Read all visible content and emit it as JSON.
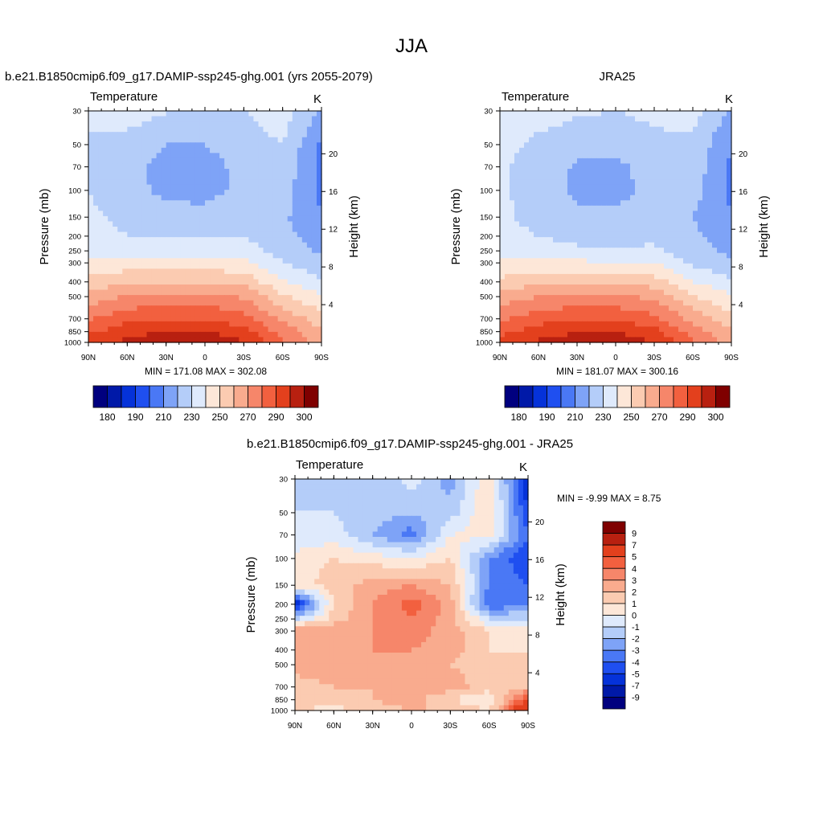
{
  "figure": {
    "title": "JJA"
  },
  "colors": {
    "abs_levels": [
      "#00007f",
      "#0019a8",
      "#0532d9",
      "#1f4ff0",
      "#4a78f5",
      "#7ea3f7",
      "#b4cdf9",
      "#dfeafc",
      "#fde7d8",
      "#fbcbb1",
      "#f9ab8e",
      "#f6866a",
      "#f2603f",
      "#e3401d",
      "#b82010",
      "#7f0000"
    ],
    "diff_levels": [
      "#00007f",
      "#0019a8",
      "#0532d9",
      "#1f4ff0",
      "#4a78f5",
      "#7ea3f7",
      "#b4cdf9",
      "#dfeafc",
      "#fde7d8",
      "#fbcbb1",
      "#f9ab8e",
      "#f6866a",
      "#f2603f",
      "#e3401d",
      "#b82010",
      "#7f0000"
    ]
  },
  "panels": [
    {
      "id": "model",
      "title": "b.e21.B1850cmip6.f09_g17.DAMIP-ssp245-ghg.001 (yrs 2055-2079)",
      "left_label": "Temperature",
      "right_label": "K",
      "y_label": "Pressure (mb)",
      "y2_label": "Height (km)",
      "stats": "MIN = 171.08  MAX = 302.08"
    },
    {
      "id": "obs",
      "title": "JRA25",
      "left_label": "Temperature",
      "right_label": "K",
      "y_label": "Pressure (mb)",
      "y2_label": "Height (km)",
      "stats": "MIN = 181.07  MAX = 300.16"
    },
    {
      "id": "diff",
      "title": "b.e21.B1850cmip6.f09_g17.DAMIP-ssp245-ghg.001 - JRA25",
      "left_label": "Temperature",
      "right_label": "K",
      "y_label": "Pressure (mb)",
      "y2_label": "Height (km)",
      "stats": "MIN =  -9.99  MAX =   8.75"
    }
  ],
  "axes": {
    "x_ticks": [
      "90N",
      "60N",
      "30N",
      "0",
      "30S",
      "60S",
      "90S"
    ],
    "x_values": [
      90,
      60,
      30,
      0,
      -30,
      -60,
      -90
    ],
    "p_ticks": [
      30,
      50,
      70,
      100,
      150,
      200,
      250,
      300,
      400,
      500,
      700,
      850,
      1000
    ],
    "p_tick_labels": [
      "30",
      "50",
      "70",
      "100",
      "150",
      "200",
      "250",
      "300",
      "400",
      "500",
      "700",
      "850",
      "1000"
    ],
    "p_range": [
      30,
      1000
    ],
    "z_ticks": [
      4,
      8,
      12,
      16,
      20
    ],
    "z_tick_labels": [
      "4",
      "8",
      "12",
      "16",
      "20"
    ]
  },
  "colorbars": {
    "abs_labels": [
      "180",
      "190",
      "210",
      "230",
      "250",
      "270",
      "290",
      "300"
    ],
    "diff_labels": [
      "9",
      "7",
      "5",
      "4",
      "3",
      "2",
      "1",
      "0",
      "-1",
      "-2",
      "-3",
      "-4",
      "-5",
      "-7",
      "-9"
    ]
  },
  "chart_data": [
    {
      "type": "heatmap",
      "title": "b.e21.B1850cmip6.f09_g17.DAMIP-ssp245-ghg.001 (yrs 2055-2079)",
      "units": "K",
      "xlabel": "",
      "ylabel": "Pressure (mb)",
      "x": [
        "90N",
        "60N",
        "30N",
        "0",
        "30S",
        "60S",
        "90S"
      ],
      "y_pressure_mb": [
        30,
        50,
        70,
        100,
        150,
        200,
        250,
        300,
        400,
        500,
        700,
        850,
        1000
      ],
      "min": 171.08,
      "max": 302.08,
      "levels": [
        175,
        180,
        185,
        190,
        200,
        210,
        220,
        230,
        240,
        250,
        260,
        270,
        280,
        290,
        300
      ],
      "values": [
        [
          222,
          226,
          221,
          215,
          220,
          226,
          208
        ],
        [
          219,
          215,
          210,
          210,
          215,
          220,
          198
        ],
        [
          218,
          213,
          207,
          206,
          213,
          217,
          196
        ],
        [
          220,
          213,
          208,
          207,
          212,
          215,
          198
        ],
        [
          222,
          217,
          213,
          213,
          216,
          212,
          200
        ],
        [
          224,
          220,
          219,
          219,
          220,
          214,
          204
        ],
        [
          227,
          225,
          225,
          225,
          225,
          216,
          208
        ],
        [
          232,
          234,
          234,
          234,
          232,
          220,
          212
        ],
        [
          243,
          248,
          250,
          250,
          247,
          231,
          222
        ],
        [
          254,
          261,
          263,
          263,
          259,
          242,
          231
        ],
        [
          269,
          277,
          280,
          280,
          274,
          258,
          244
        ],
        [
          278,
          286,
          290,
          290,
          284,
          266,
          252
        ],
        [
          284,
          293,
          299,
          301,
          291,
          272,
          255
        ]
      ]
    },
    {
      "type": "heatmap",
      "title": "JRA25",
      "units": "K",
      "xlabel": "",
      "ylabel": "Pressure (mb)",
      "x": [
        "90N",
        "60N",
        "30N",
        "0",
        "30S",
        "60S",
        "90S"
      ],
      "y_pressure_mb": [
        30,
        50,
        70,
        100,
        150,
        200,
        250,
        300,
        400,
        500,
        700,
        850,
        1000
      ],
      "min": 181.07,
      "max": 300.16,
      "levels": [
        175,
        180,
        185,
        190,
        200,
        210,
        220,
        230,
        240,
        250,
        260,
        270,
        280,
        290,
        300
      ],
      "values": [
        [
          226,
          226,
          222,
          220,
          223,
          224,
          208
        ],
        [
          224,
          217,
          212,
          212,
          217,
          218,
          200
        ],
        [
          222,
          215,
          209,
          208,
          214,
          216,
          198
        ],
        [
          222,
          215,
          208,
          207,
          213,
          214,
          198
        ],
        [
          222,
          217,
          212,
          212,
          215,
          210,
          200
        ],
        [
          223,
          220,
          217,
          216,
          218,
          212,
          204
        ],
        [
          226,
          225,
          222,
          221,
          222,
          214,
          208
        ],
        [
          231,
          233,
          232,
          231,
          230,
          218,
          212
        ],
        [
          243,
          248,
          249,
          248,
          245,
          230,
          222
        ],
        [
          254,
          260,
          262,
          262,
          258,
          241,
          231
        ],
        [
          268,
          276,
          279,
          279,
          273,
          257,
          244
        ],
        [
          277,
          285,
          289,
          289,
          283,
          265,
          252
        ],
        [
          283,
          292,
          298,
          299,
          290,
          271,
          255
        ]
      ]
    },
    {
      "type": "heatmap",
      "title": "b.e21.B1850cmip6.f09_g17.DAMIP-ssp245-ghg.001 - JRA25",
      "units": "K",
      "xlabel": "",
      "ylabel": "Pressure (mb)",
      "x": [
        "90N",
        "60N",
        "30N",
        "0",
        "30S",
        "60S",
        "90S"
      ],
      "y_pressure_mb": [
        30,
        50,
        70,
        100,
        150,
        200,
        250,
        300,
        400,
        500,
        700,
        850,
        1000
      ],
      "min": -9.99,
      "max": 8.75,
      "levels": [
        -9,
        -7,
        -5,
        -4,
        -3,
        -2,
        -1,
        0,
        1,
        2,
        3,
        4,
        5,
        7,
        9
      ],
      "values": [
        [
          -2,
          -1.5,
          -2,
          -0.5,
          -2.5,
          1,
          -6
        ],
        [
          -1,
          -1,
          -1.5,
          -2,
          -1.5,
          1,
          -5
        ],
        [
          -1,
          -0.5,
          -2,
          -3.5,
          0,
          0.5,
          -4
        ],
        [
          0.5,
          1,
          0.5,
          0,
          1,
          -3,
          -5
        ],
        [
          0.5,
          1.5,
          2.5,
          3,
          2,
          -3,
          -4
        ],
        [
          -6,
          1,
          3,
          4.5,
          2.5,
          -4,
          -3
        ],
        [
          -1,
          1.5,
          3,
          4,
          2.5,
          -1,
          -1
        ],
        [
          3,
          3,
          3,
          3.5,
          2.5,
          1,
          0.5
        ],
        [
          3,
          2.5,
          3,
          3,
          2.5,
          1,
          1
        ],
        [
          2.5,
          2.5,
          2.5,
          2.5,
          2,
          1.5,
          1
        ],
        [
          1.5,
          2,
          2,
          2.5,
          2.5,
          1.5,
          2
        ],
        [
          2,
          1.5,
          2,
          2.5,
          1,
          0,
          5
        ],
        [
          1,
          0.5,
          1.5,
          2,
          2,
          1,
          8
        ]
      ]
    }
  ]
}
